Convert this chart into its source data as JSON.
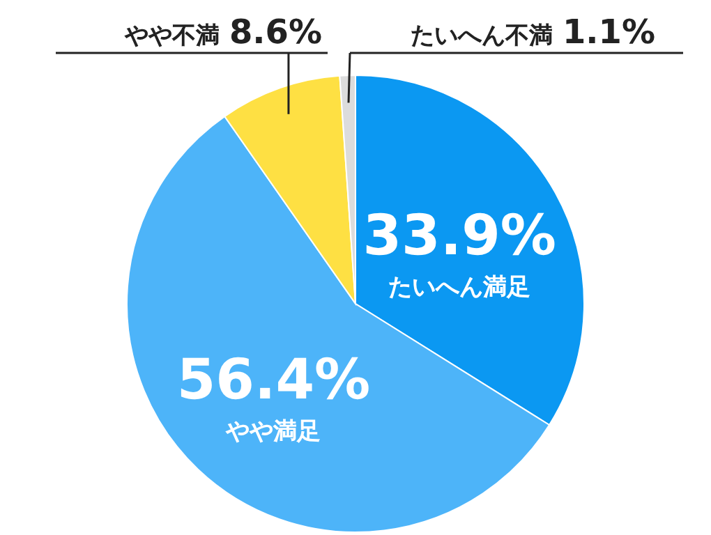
{
  "chart_data": {
    "type": "pie",
    "categories": [
      "たいへん満足",
      "やや満足",
      "やや不満",
      "たいへん不満"
    ],
    "values": [
      33.9,
      56.4,
      8.6,
      1.1
    ],
    "colors": [
      "#0b98f2",
      "#4db4f9",
      "#fee043",
      "#dcdcdc"
    ],
    "value_labels": [
      "33.9%",
      "56.4%",
      "8.6%",
      "1.1%"
    ],
    "legend": false
  }
}
